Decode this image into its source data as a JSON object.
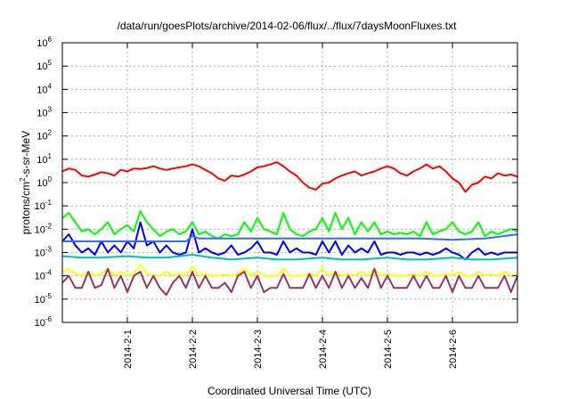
{
  "chart_data": {
    "type": "line",
    "title": "/data/run/goesPlots/archive/2014-02-06/flux/../flux/7daysMoonFluxes.txt",
    "xlabel": "Coordinated Universal Time (UTC)",
    "ylabel": {
      "base": "protons/cm",
      "exp": "2",
      "rest": "-s-sr-MeV"
    },
    "yscale": "log",
    "ylim": [
      1e-06,
      1000000.0
    ],
    "xlim": [
      0,
      7
    ],
    "x_tick_dates": [
      "2014-2-1",
      "2014-2-2",
      "2014-2-3",
      "2014-2-4",
      "2014-2-5",
      "2014-2-6"
    ],
    "y_ticks": [
      {
        "value": 1e-06,
        "base": "10",
        "exp": "-6"
      },
      {
        "value": 1e-05,
        "base": "10",
        "exp": "-5"
      },
      {
        "value": 0.0001,
        "base": "10",
        "exp": "-4"
      },
      {
        "value": 0.001,
        "base": "10",
        "exp": "-3"
      },
      {
        "value": 0.01,
        "base": "10",
        "exp": "-2"
      },
      {
        "value": 0.1,
        "base": "10",
        "exp": "-1"
      },
      {
        "value": 1,
        "base": "10",
        "exp": "0"
      },
      {
        "value": 10,
        "base": "10",
        "exp": "1"
      },
      {
        "value": 100,
        "base": "10",
        "exp": "2"
      },
      {
        "value": 1000,
        "base": "10",
        "exp": "3"
      },
      {
        "value": 10000,
        "base": "10",
        "exp": "4"
      },
      {
        "value": 100000,
        "base": "10",
        "exp": "5"
      },
      {
        "value": 1000000,
        "base": "10",
        "exp": "6"
      }
    ],
    "grid": true,
    "legend": "none",
    "series": [
      {
        "color": "#ff0000",
        "x": [
          0.0,
          0.1,
          0.2,
          0.3,
          0.4,
          0.5,
          0.6,
          0.7,
          0.8,
          0.9,
          1.0,
          1.1,
          1.2,
          1.3,
          1.4,
          1.5,
          1.6,
          1.7,
          1.8,
          1.9,
          2.0,
          2.1,
          2.2,
          2.3,
          2.4,
          2.5,
          2.6,
          2.7,
          2.8,
          2.9,
          3.0,
          3.1,
          3.2,
          3.3,
          3.4,
          3.5,
          3.6,
          3.7,
          3.8,
          3.9,
          4.0,
          4.1,
          4.2,
          4.3,
          4.4,
          4.5,
          4.6,
          4.7,
          4.8,
          4.9,
          5.0,
          5.1,
          5.2,
          5.3,
          5.4,
          5.5,
          5.6,
          5.7,
          5.8,
          5.9,
          6.0,
          6.1,
          6.2,
          6.3,
          6.4,
          6.5,
          6.6,
          6.7,
          6.8,
          6.9,
          7.0
        ],
        "values": [
          3.0,
          4.0,
          3.5,
          2.0,
          1.8,
          2.2,
          2.8,
          2.5,
          2.0,
          3.5,
          3.0,
          4.0,
          3.8,
          4.2,
          5.0,
          4.0,
          3.5,
          4.0,
          4.5,
          5.0,
          6.0,
          5.0,
          3.5,
          2.5,
          1.5,
          1.2,
          2.0,
          1.8,
          2.2,
          3.0,
          4.5,
          5.0,
          6.0,
          7.5,
          5.0,
          3.0,
          2.0,
          1.0,
          0.6,
          0.5,
          0.9,
          1.0,
          1.5,
          2.0,
          2.5,
          3.0,
          2.0,
          2.5,
          3.0,
          4.0,
          5.0,
          4.0,
          2.5,
          2.0,
          3.0,
          4.0,
          6.0,
          4.0,
          5.0,
          3.0,
          1.5,
          1.0,
          0.4,
          0.8,
          1.0,
          1.8,
          1.5,
          2.5,
          2.0,
          2.2,
          1.8
        ]
      },
      {
        "color": "#00ff00",
        "x": [
          0.0,
          0.1,
          0.2,
          0.3,
          0.4,
          0.5,
          0.6,
          0.7,
          0.8,
          0.9,
          1.0,
          1.1,
          1.2,
          1.3,
          1.4,
          1.5,
          1.6,
          1.7,
          1.8,
          1.9,
          2.0,
          2.1,
          2.2,
          2.3,
          2.4,
          2.5,
          2.6,
          2.7,
          2.8,
          2.9,
          3.0,
          3.1,
          3.2,
          3.3,
          3.4,
          3.5,
          3.6,
          3.7,
          3.8,
          3.9,
          4.0,
          4.1,
          4.2,
          4.3,
          4.4,
          4.5,
          4.6,
          4.7,
          4.8,
          4.9,
          5.0,
          5.1,
          5.2,
          5.3,
          5.4,
          5.5,
          5.6,
          5.7,
          5.8,
          5.9,
          6.0,
          6.1,
          6.2,
          6.3,
          6.4,
          6.5,
          6.6,
          6.7,
          6.8,
          6.9,
          7.0
        ],
        "values": [
          0.03,
          0.05,
          0.02,
          0.008,
          0.01,
          0.006,
          0.01,
          0.02,
          0.006,
          0.01,
          0.015,
          0.008,
          0.06,
          0.02,
          0.01,
          0.005,
          0.008,
          0.01,
          0.006,
          0.008,
          0.02,
          0.006,
          0.008,
          0.005,
          0.004,
          0.006,
          0.005,
          0.006,
          0.02,
          0.008,
          0.03,
          0.01,
          0.008,
          0.006,
          0.05,
          0.01,
          0.006,
          0.005,
          0.008,
          0.01,
          0.03,
          0.008,
          0.05,
          0.01,
          0.03,
          0.006,
          0.02,
          0.008,
          0.02,
          0.006,
          0.008,
          0.006,
          0.007,
          0.006,
          0.008,
          0.005,
          0.02,
          0.006,
          0.008,
          0.01,
          0.02,
          0.008,
          0.006,
          0.008,
          0.02,
          0.005,
          0.008,
          0.006,
          0.008,
          0.01,
          0.008
        ]
      },
      {
        "color": "#0000ff",
        "x": [
          0.0,
          0.1,
          0.2,
          0.3,
          0.4,
          0.5,
          0.6,
          0.7,
          0.8,
          0.9,
          1.0,
          1.1,
          1.2,
          1.3,
          1.4,
          1.5,
          1.6,
          1.7,
          1.8,
          1.9,
          2.0,
          2.1,
          2.2,
          2.3,
          2.4,
          2.5,
          2.6,
          2.7,
          2.8,
          2.9,
          3.0,
          3.1,
          3.2,
          3.3,
          3.4,
          3.5,
          3.6,
          3.7,
          3.8,
          3.9,
          4.0,
          4.1,
          4.2,
          4.3,
          4.4,
          4.5,
          4.6,
          4.7,
          4.8,
          4.9,
          5.0,
          5.1,
          5.2,
          5.3,
          5.4,
          5.5,
          5.6,
          5.7,
          5.8,
          5.9,
          6.0,
          6.1,
          6.2,
          6.3,
          6.4,
          6.5,
          6.6,
          6.7,
          6.8,
          6.9,
          7.0
        ],
        "values": [
          0.003,
          0.006,
          0.002,
          0.001,
          0.0015,
          0.0008,
          0.003,
          0.001,
          0.002,
          0.001,
          0.003,
          0.0015,
          0.02,
          0.002,
          0.003,
          0.001,
          0.002,
          0.001,
          0.0008,
          0.001,
          0.01,
          0.001,
          0.0015,
          0.001,
          0.0008,
          0.001,
          0.002,
          0.0008,
          0.001,
          0.0015,
          0.003,
          0.001,
          0.001,
          0.0008,
          0.003,
          0.001,
          0.0015,
          0.001,
          0.001,
          0.0008,
          0.003,
          0.001,
          0.003,
          0.0008,
          0.002,
          0.001,
          0.0015,
          0.001,
          0.003,
          0.0008,
          0.001,
          0.001,
          0.0008,
          0.001,
          0.001,
          0.0008,
          0.001,
          0.0008,
          0.001,
          0.0015,
          0.001,
          0.0008,
          0.0005,
          0.001,
          0.0015,
          0.0008,
          0.001,
          0.0008,
          0.001,
          0.001,
          0.001
        ]
      },
      {
        "color": "#2f6fff",
        "x": [
          0.0,
          0.5,
          1.0,
          1.5,
          1.9,
          2.0,
          2.1,
          2.6,
          3.0,
          3.5,
          4.0,
          4.5,
          5.0,
          5.5,
          6.0,
          6.5,
          7.0
        ],
        "values": [
          0.003,
          0.003,
          0.003,
          0.003,
          0.003,
          0.005,
          0.004,
          0.004,
          0.004,
          0.004,
          0.004,
          0.004,
          0.004,
          0.004,
          0.0035,
          0.004,
          0.006
        ]
      },
      {
        "color": "#00c0b0",
        "x": [
          0.0,
          0.3,
          0.6,
          1.0,
          1.3,
          1.6,
          2.0,
          2.3,
          2.6,
          3.0,
          3.3,
          3.6,
          4.0,
          4.3,
          4.6,
          5.0,
          5.3,
          5.6,
          6.0,
          6.3,
          6.6,
          7.0
        ],
        "values": [
          0.0007,
          0.0006,
          0.0006,
          0.0007,
          0.0006,
          0.0006,
          0.0008,
          0.0006,
          0.0005,
          0.0006,
          0.0005,
          0.0005,
          0.0006,
          0.0005,
          0.0005,
          0.0006,
          0.0005,
          0.0005,
          0.0006,
          0.0005,
          0.0005,
          0.0006
        ]
      },
      {
        "color": "#ffff00",
        "x": [
          0.0,
          0.1,
          0.2,
          0.3,
          0.4,
          0.5,
          0.6,
          0.7,
          0.8,
          0.9,
          1.0,
          1.1,
          1.2,
          1.3,
          1.4,
          1.5,
          1.6,
          1.7,
          1.8,
          1.9,
          2.0,
          2.1,
          2.2,
          2.3,
          2.4,
          2.5,
          2.6,
          2.7,
          2.8,
          2.9,
          3.0,
          3.1,
          3.2,
          3.3,
          3.4,
          3.5,
          3.6,
          3.7,
          3.8,
          3.9,
          4.0,
          4.1,
          4.2,
          4.3,
          4.4,
          4.5,
          4.6,
          4.7,
          4.8,
          4.9,
          5.0,
          5.1,
          5.2,
          5.3,
          5.4,
          5.5,
          5.6,
          5.7,
          5.8,
          5.9,
          6.0,
          6.1,
          6.2,
          6.3,
          6.4,
          6.5,
          6.6,
          6.7,
          6.8,
          6.9,
          7.0
        ],
        "values": [
          0.00015,
          0.0002,
          0.00012,
          0.0001,
          0.00015,
          0.0001,
          0.00012,
          0.0002,
          0.0001,
          0.00015,
          0.0001,
          0.00012,
          0.0003,
          0.00012,
          0.0001,
          0.0001,
          0.00015,
          0.0001,
          0.00012,
          0.0001,
          0.00025,
          0.0001,
          0.00012,
          0.0001,
          0.0001,
          0.00012,
          0.0001,
          0.00012,
          0.0002,
          0.0001,
          0.00015,
          0.0001,
          0.0001,
          0.0001,
          0.0002,
          0.0001,
          0.0001,
          0.0001,
          0.00012,
          0.0001,
          0.0002,
          0.0001,
          0.00015,
          0.0001,
          0.00012,
          0.0001,
          0.00015,
          0.0001,
          0.0002,
          0.0001,
          0.00012,
          0.0001,
          0.0001,
          0.0001,
          0.00012,
          0.0001,
          0.00015,
          0.0001,
          0.0001,
          0.00012,
          0.0001,
          0.00015,
          0.0001,
          0.0001,
          0.00015,
          0.0001,
          0.00012,
          0.0001,
          0.00015,
          0.0001,
          0.00012
        ]
      },
      {
        "color": "#993366",
        "x": [
          0.0,
          0.1,
          0.2,
          0.3,
          0.4,
          0.5,
          0.6,
          0.7,
          0.8,
          0.9,
          1.0,
          1.1,
          1.2,
          1.3,
          1.4,
          1.5,
          1.6,
          1.7,
          1.8,
          1.9,
          2.0,
          2.1,
          2.2,
          2.3,
          2.4,
          2.5,
          2.6,
          2.7,
          2.8,
          2.9,
          3.0,
          3.1,
          3.2,
          3.3,
          3.4,
          3.5,
          3.6,
          3.7,
          3.8,
          3.9,
          4.0,
          4.1,
          4.2,
          4.3,
          4.4,
          4.5,
          4.6,
          4.7,
          4.8,
          4.9,
          5.0,
          5.1,
          5.2,
          5.3,
          5.4,
          5.5,
          5.6,
          5.7,
          5.8,
          5.9,
          6.0,
          6.1,
          6.2,
          6.3,
          6.4,
          6.5,
          6.6,
          6.7,
          6.8,
          6.9,
          7.0
        ],
        "values": [
          5e-05,
          0.0001,
          3e-05,
          3e-05,
          0.00015,
          3e-05,
          4e-05,
          0.0002,
          3e-05,
          0.0001,
          2e-05,
          0.0001,
          0.00015,
          3e-05,
          0.0001,
          3e-05,
          1.5e-05,
          5e-05,
          0.0001,
          3e-05,
          0.00015,
          3e-05,
          0.0001,
          3e-05,
          3e-05,
          5e-05,
          2e-05,
          0.0001,
          0.00015,
          3e-05,
          0.0001,
          2e-05,
          3e-05,
          3e-05,
          0.00012,
          3e-05,
          3e-05,
          3e-05,
          0.00012,
          3e-05,
          0.0001,
          3e-05,
          0.00015,
          3e-05,
          0.0001,
          3e-05,
          8e-05,
          3e-05,
          0.0002,
          3e-05,
          0.0001,
          3e-05,
          3e-05,
          3e-05,
          0.0001,
          3e-05,
          0.0001,
          3e-05,
          3e-05,
          0.0001,
          2e-05,
          0.0001,
          3e-05,
          3e-05,
          0.0001,
          3e-05,
          3e-05,
          3e-05,
          0.0001,
          2e-05,
          0.0001
        ]
      }
    ]
  }
}
